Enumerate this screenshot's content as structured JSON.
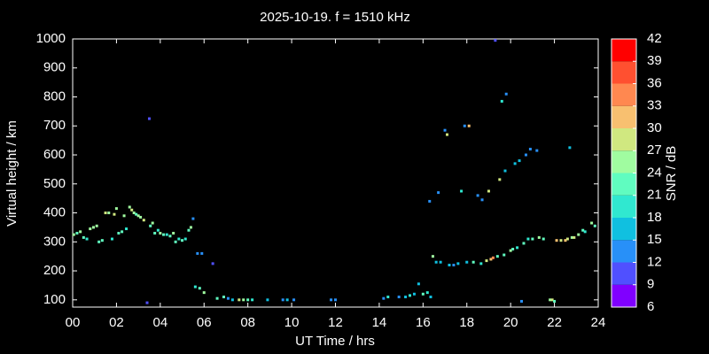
{
  "chart_data": {
    "type": "scatter",
    "title": "2025-10-19. f = 1510 kHz",
    "x_label": "UT Time / hrs",
    "y_label": "Virtual height / km",
    "xlim": [
      0,
      24
    ],
    "xticks": [
      {
        "value": 0,
        "label": "00"
      },
      {
        "value": 2,
        "label": "02"
      },
      {
        "value": 4,
        "label": "04"
      },
      {
        "value": 6,
        "label": "06"
      },
      {
        "value": 8,
        "label": "08"
      },
      10,
      12,
      14,
      16,
      18,
      20,
      22,
      24
    ],
    "ylim": [
      75,
      1000
    ],
    "yticks": [
      100,
      200,
      300,
      400,
      500,
      600,
      700,
      800,
      900,
      1000
    ],
    "colorbar": {
      "label": "SNR / dB",
      "lim": [
        6,
        42
      ],
      "ticks": [
        6,
        9,
        12,
        15,
        18,
        21,
        24,
        27,
        30,
        33,
        36,
        39,
        42
      ],
      "colors": [
        "#8000ff",
        "#5050ff",
        "#2890f8",
        "#10c0e0",
        "#30e8d0",
        "#60fcc0",
        "#a0fca0",
        "#d0e880",
        "#f8c070",
        "#ff8850",
        "#ff5030",
        "#ff0000"
      ]
    },
    "series": [
      {
        "x": [
          0.05,
          0.2,
          0.35,
          0.5,
          0.65,
          0.8,
          0.95,
          1.1,
          1.2,
          1.35,
          1.5,
          1.65,
          1.8,
          1.9,
          2.0,
          2.1,
          2.25,
          2.35,
          2.45,
          2.6,
          2.7,
          2.8,
          2.9,
          3.0,
          3.1,
          3.25,
          3.4,
          3.5,
          3.55,
          3.65,
          3.75,
          3.9,
          4.0,
          4.15,
          4.3,
          4.45,
          4.6,
          4.7,
          4.85,
          5.0,
          5.15,
          5.3,
          5.4,
          5.5,
          5.6,
          5.7,
          5.8,
          5.9,
          6.0,
          6.4,
          6.6,
          6.9,
          7.1,
          7.3,
          7.6,
          7.8,
          8.0,
          8.2,
          8.9,
          9.6,
          9.8,
          10.1,
          11.8,
          12.0,
          14.2,
          14.4,
          14.9,
          15.2,
          15.4,
          15.6,
          15.8,
          16.0,
          16.2,
          16.35,
          16.3,
          16.45,
          16.6,
          16.7,
          16.8,
          17.0,
          17.1,
          17.2,
          17.4,
          17.6,
          17.75,
          17.9,
          18.0,
          18.1,
          18.3,
          18.5,
          18.7,
          18.65,
          18.9,
          19.0,
          19.1,
          19.2,
          19.3,
          19.4,
          19.5,
          19.6,
          19.7,
          19.8,
          19.75,
          20.0,
          20.1,
          20.2,
          20.3,
          20.4,
          20.5,
          20.6,
          20.7,
          20.8,
          20.9,
          21.0,
          21.2,
          21.3,
          21.5,
          21.8,
          21.9,
          22.0,
          22.1,
          22.3,
          22.5,
          22.6,
          22.7,
          22.8,
          22.9,
          23.1,
          23.3,
          23.4,
          23.7,
          23.85
        ],
        "values": [
          325,
          330,
          335,
          315,
          310,
          345,
          350,
          355,
          300,
          305,
          400,
          400,
          310,
          395,
          415,
          330,
          335,
          390,
          345,
          420,
          410,
          400,
          395,
          390,
          385,
          375,
          90,
          725,
          355,
          365,
          330,
          340,
          330,
          325,
          325,
          320,
          330,
          300,
          310,
          305,
          310,
          340,
          350,
          380,
          145,
          260,
          140,
          260,
          125,
          225,
          105,
          110,
          105,
          100,
          100,
          100,
          100,
          100,
          100,
          100,
          100,
          100,
          100,
          100,
          105,
          110,
          110,
          110,
          115,
          120,
          155,
          120,
          125,
          110,
          440,
          250,
          230,
          470,
          230,
          685,
          670,
          220,
          220,
          225,
          475,
          700,
          230,
          700,
          230,
          460,
          445,
          225,
          235,
          475,
          240,
          245,
          995,
          250,
          515,
          785,
          255,
          810,
          545,
          270,
          275,
          570,
          280,
          580,
          95,
          295,
          600,
          310,
          620,
          310,
          615,
          315,
          310,
          100,
          100,
          95,
          305,
          305,
          305,
          310,
          625,
          315,
          315,
          325,
          340,
          335,
          365,
          355
        ],
        "snr": [
          24,
          21,
          24,
          21,
          18,
          24,
          24,
          24,
          21,
          21,
          27,
          24,
          18,
          27,
          24,
          21,
          21,
          24,
          18,
          24,
          27,
          24,
          21,
          24,
          24,
          27,
          9,
          9,
          21,
          24,
          21,
          18,
          24,
          21,
          18,
          21,
          24,
          21,
          18,
          21,
          18,
          21,
          24,
          12,
          18,
          12,
          21,
          12,
          24,
          9,
          21,
          21,
          12,
          15,
          27,
          24,
          21,
          18,
          15,
          12,
          15,
          12,
          12,
          12,
          12,
          18,
          12,
          15,
          18,
          15,
          15,
          21,
          18,
          15,
          12,
          24,
          15,
          12,
          15,
          12,
          27,
          15,
          12,
          15,
          18,
          12,
          15,
          30,
          21,
          12,
          12,
          18,
          27,
          27,
          30,
          33,
          9,
          21,
          27,
          18,
          21,
          12,
          15,
          24,
          21,
          15,
          18,
          15,
          12,
          21,
          12,
          18,
          12,
          21,
          12,
          24,
          21,
          24,
          27,
          21,
          30,
          27,
          30,
          27,
          15,
          24,
          27,
          24,
          21,
          18,
          24,
          21
        ]
      }
    ]
  }
}
